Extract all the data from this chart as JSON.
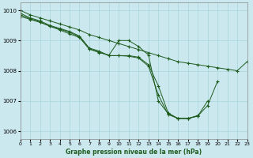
{
  "title": "Graphe pression niveau de la mer (hPa)",
  "bg_color": "#cce8ef",
  "grid_color": "#a8d5dc",
  "line_color": "#1e5c1e",
  "xlim": [
    0,
    23
  ],
  "ylim": [
    1005.75,
    1010.25
  ],
  "yticks": [
    1006,
    1007,
    1008,
    1009,
    1010
  ],
  "xticks": [
    0,
    1,
    2,
    3,
    4,
    5,
    6,
    7,
    8,
    9,
    10,
    11,
    12,
    13,
    14,
    15,
    16,
    17,
    18,
    19,
    20,
    21,
    22,
    23
  ],
  "series": [
    {
      "x": [
        0,
        1,
        2,
        3,
        4,
        5,
        6,
        7,
        8,
        9,
        10,
        11,
        12,
        13,
        14,
        15,
        16,
        17,
        18,
        19,
        20,
        21,
        22,
        23
      ],
      "y": [
        1010.0,
        1009.85,
        1009.75,
        1009.65,
        1009.55,
        1009.45,
        1009.35,
        1009.2,
        1009.1,
        1009.0,
        1008.9,
        1008.8,
        1008.7,
        1008.6,
        1008.5,
        1008.4,
        1008.3,
        1008.25,
        1008.2,
        1008.15,
        1008.1,
        1008.05,
        1008.0,
        1008.3
      ]
    },
    {
      "x": [
        0,
        1,
        2,
        3,
        4,
        5,
        6,
        7,
        8,
        9,
        10,
        11,
        12,
        13,
        14,
        15,
        16,
        17,
        18,
        19,
        20
      ],
      "y": [
        1009.9,
        1009.75,
        1009.65,
        1009.5,
        1009.4,
        1009.3,
        1009.15,
        1008.75,
        1008.65,
        1008.5,
        1008.5,
        1008.5,
        1008.45,
        1008.2,
        1007.5,
        1006.6,
        1006.42,
        1006.42,
        1006.5,
        1006.85,
        1007.65
      ]
    },
    {
      "x": [
        0,
        1,
        2,
        3,
        4,
        5,
        6,
        7,
        8,
        9,
        10,
        11,
        12,
        13,
        14,
        15,
        16,
        17,
        18,
        19
      ],
      "y": [
        1009.85,
        1009.72,
        1009.62,
        1009.47,
        1009.38,
        1009.27,
        1009.12,
        1008.72,
        1008.62,
        1008.5,
        1008.5,
        1008.48,
        1008.42,
        1008.15,
        1007.2,
        1006.55,
        1006.42,
        1006.42,
        1006.5,
        1007.0
      ]
    },
    {
      "x": [
        0,
        1,
        2,
        3,
        4,
        5,
        6,
        7,
        8,
        9,
        10,
        11,
        12,
        13,
        14,
        15,
        16,
        17,
        18
      ],
      "y": [
        1009.8,
        1009.7,
        1009.6,
        1009.48,
        1009.35,
        1009.22,
        1009.1,
        1008.72,
        1008.6,
        1008.52,
        1009.0,
        1009.0,
        1008.8,
        1008.52,
        1007.0,
        1006.58,
        1006.42,
        1006.42,
        1006.52
      ]
    }
  ]
}
